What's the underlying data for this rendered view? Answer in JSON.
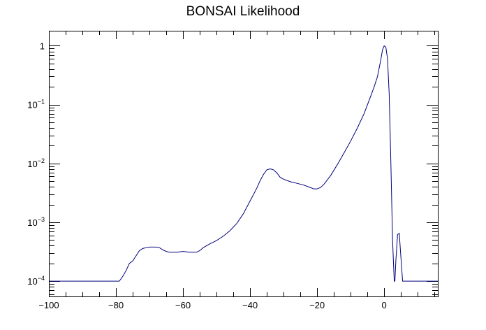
{
  "chart_data": {
    "type": "line",
    "title": "BONSAI Likelihood",
    "xlabel": "",
    "ylabel": "",
    "xlim": [
      -100,
      16
    ],
    "ylim": [
      5.5e-05,
      1.8
    ],
    "y_scale": "log",
    "grid": false,
    "line_color": "#00007f",
    "x_ticks": [
      -100,
      -80,
      -60,
      -40,
      -20,
      0
    ],
    "x_tick_labels": [
      "−100",
      "−80",
      "−60",
      "−40",
      "−20",
      "0"
    ],
    "y_ticks": [
      {
        "value": 0.0001,
        "base": "10",
        "exp": "−4"
      },
      {
        "value": 0.001,
        "base": "10",
        "exp": "−3"
      },
      {
        "value": 0.01,
        "base": "10",
        "exp": "−2"
      },
      {
        "value": 0.1,
        "base": "10",
        "exp": "−1"
      },
      {
        "value": 1,
        "base": "1",
        "exp": ""
      }
    ],
    "series": [
      {
        "x": [
          -100,
          -79,
          -78,
          -77,
          -76,
          -75,
          -74,
          -73,
          -72,
          -71,
          -70,
          -68,
          -67,
          -66,
          -65,
          -64,
          -62,
          -60,
          -58,
          -56,
          -55,
          -54,
          -52,
          -50,
          -48,
          -46,
          -44,
          -42,
          -40,
          -38,
          -37,
          -36,
          -35,
          -34,
          -33,
          -32,
          -31,
          -30,
          -28,
          -26,
          -24,
          -22,
          -21,
          -20,
          -19,
          -18,
          -16,
          -14,
          -12,
          -10,
          -8,
          -6,
          -4,
          -3,
          -2,
          -1,
          -0.5,
          0,
          0.5,
          1,
          1.5,
          2,
          2.5,
          3,
          3.2,
          3.5,
          4,
          4.5,
          5,
          5.5,
          6,
          8,
          10,
          12,
          14,
          16
        ],
        "y": [
          0.0001,
          0.0001,
          0.00012,
          0.00015,
          0.0002,
          0.00022,
          0.00027,
          0.00033,
          0.00036,
          0.00037,
          0.00038,
          0.00038,
          0.00037,
          0.00034,
          0.00032,
          0.00031,
          0.00031,
          0.00032,
          0.00031,
          0.00031,
          0.00033,
          0.00037,
          0.00043,
          0.00049,
          0.00058,
          0.00072,
          0.00095,
          0.0014,
          0.0023,
          0.0038,
          0.0051,
          0.0065,
          0.0078,
          0.0081,
          0.0078,
          0.0069,
          0.0058,
          0.0054,
          0.0049,
          0.0046,
          0.0043,
          0.0039,
          0.0037,
          0.0037,
          0.0039,
          0.0044,
          0.0062,
          0.0095,
          0.015,
          0.024,
          0.04,
          0.07,
          0.14,
          0.2,
          0.3,
          0.58,
          0.85,
          1.0,
          0.95,
          0.6,
          0.15,
          0.01,
          0.0005,
          0.0001,
          0.0001,
          0.00023,
          0.00062,
          0.00065,
          0.00025,
          0.0001,
          0.0001,
          0.0001,
          0.0001,
          0.0001,
          0.0001,
          0.0001
        ]
      }
    ]
  }
}
